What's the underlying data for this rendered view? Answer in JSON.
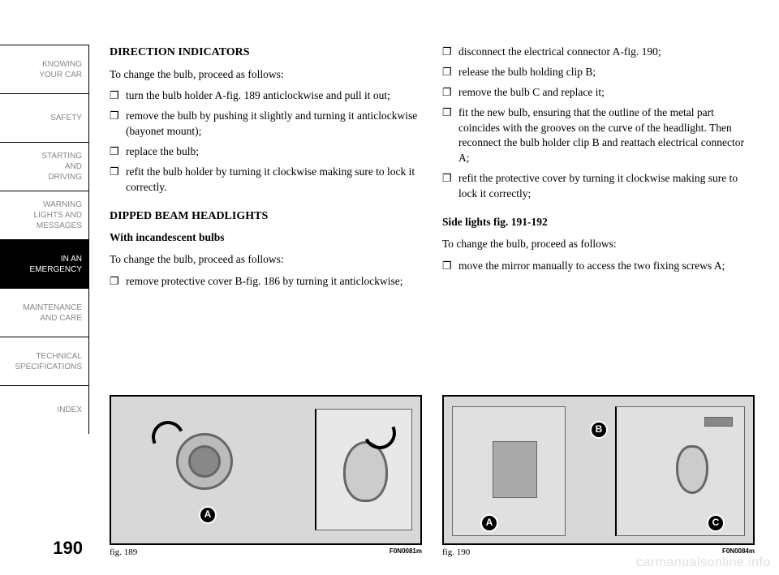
{
  "sidebar": {
    "tabs": [
      {
        "label": "KNOWING\nYOUR CAR",
        "active": false
      },
      {
        "label": "SAFETY",
        "active": false
      },
      {
        "label": "STARTING\nAND\nDRIVING",
        "active": false
      },
      {
        "label": "WARNING\nLIGHTS AND\nMESSAGES",
        "active": false
      },
      {
        "label": "IN AN\nEMERGENCY",
        "active": true
      },
      {
        "label": "MAINTENANCE\nAND CARE",
        "active": false
      },
      {
        "label": "TECHNICAL\nSPECIFICATIONS",
        "active": false
      },
      {
        "label": "INDEX",
        "active": false
      }
    ],
    "page_number": "190"
  },
  "left_col": {
    "h1": "DIRECTION INDICATORS",
    "p1": "To change the bulb, proceed as follows:",
    "bullets1": [
      "turn the bulb holder A-fig. 189 anticlockwise and pull it out;",
      "remove the bulb by pushing it slightly and turning it anticlockwise (bayonet mount);",
      "replace the bulb;",
      "refit the bulb holder by turning it clockwise making sure to lock it correctly."
    ],
    "h2": "DIPPED BEAM HEADLIGHTS",
    "h3": "With incandescent bulbs",
    "p2": "To change the bulb, proceed as follows:",
    "bullets2": [
      "remove protective cover B-fig. 186 by turning it anticlockwise;"
    ],
    "fig_label": "fig. 189",
    "fig_code": "F0N0081m",
    "callouts": [
      "A"
    ]
  },
  "right_col": {
    "bullets1": [
      "disconnect the electrical connector A-fig. 190;",
      "release the bulb holding clip B;",
      "remove the bulb C and replace it;",
      "fit the new bulb, ensuring that the outline of the metal part coincides with the grooves on the curve of the headlight. Then reconnect the bulb holder clip B and reattach electrical connector A;",
      "refit the protective cover by turning it clockwise making sure to lock it correctly;"
    ],
    "h1": "Side lights fig. 191-192",
    "p1": "To change the bulb, proceed as follows:",
    "bullets2": [
      "move the mirror manually to access the two fixing screws A;"
    ],
    "fig_label": "fig. 190",
    "fig_code": "F0N0084m",
    "callouts": [
      "A",
      "B",
      "C"
    ]
  },
  "bullet_marker": "❐",
  "watermark": "carmanualsonline.info",
  "colors": {
    "page_bg": "#ffffff",
    "text": "#000000",
    "inactive_tab_text": "#888888",
    "active_tab_bg": "#000000",
    "active_tab_text": "#ffffff",
    "figure_bg": "#d8d8d8",
    "watermark": "#e0e0e0"
  }
}
